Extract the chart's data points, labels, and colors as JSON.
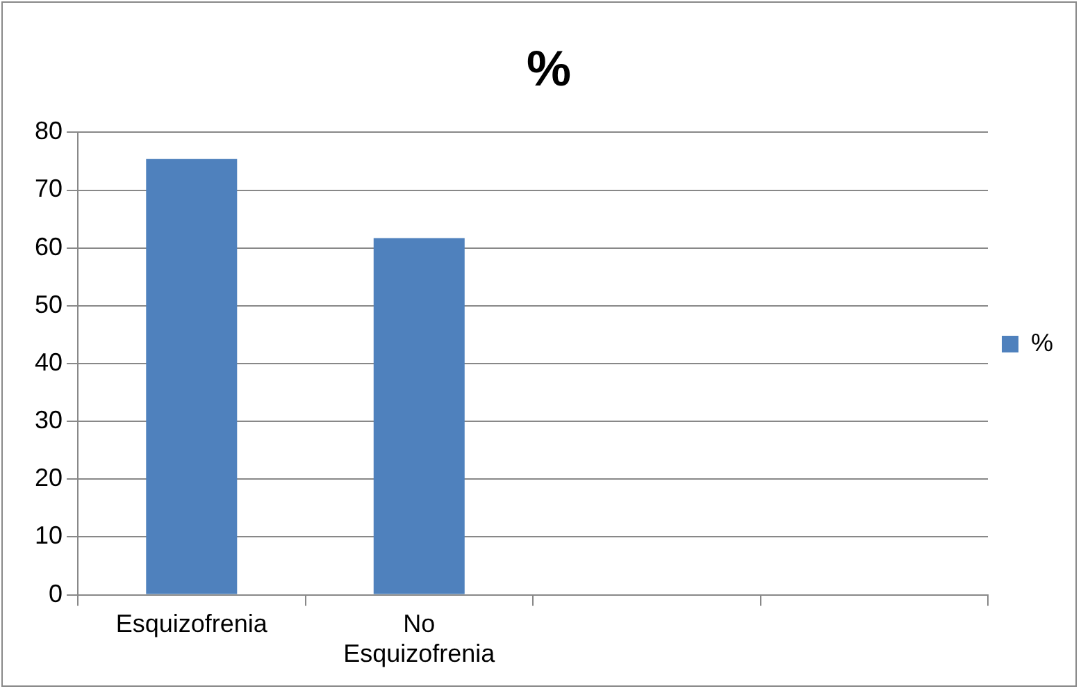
{
  "chart_data": {
    "type": "bar",
    "title": "%",
    "categories": [
      "Esquizofrenia",
      "No Esquizofrenia",
      null,
      null
    ],
    "series": [
      {
        "name": "%",
        "color": "#4f81bd",
        "values": [
          75.4,
          61.7,
          null,
          null
        ]
      }
    ],
    "ylim": [
      0,
      80
    ],
    "yticks": [
      0,
      10,
      20,
      30,
      40,
      50,
      60,
      70,
      80
    ],
    "grid": "y",
    "legend": "right"
  }
}
